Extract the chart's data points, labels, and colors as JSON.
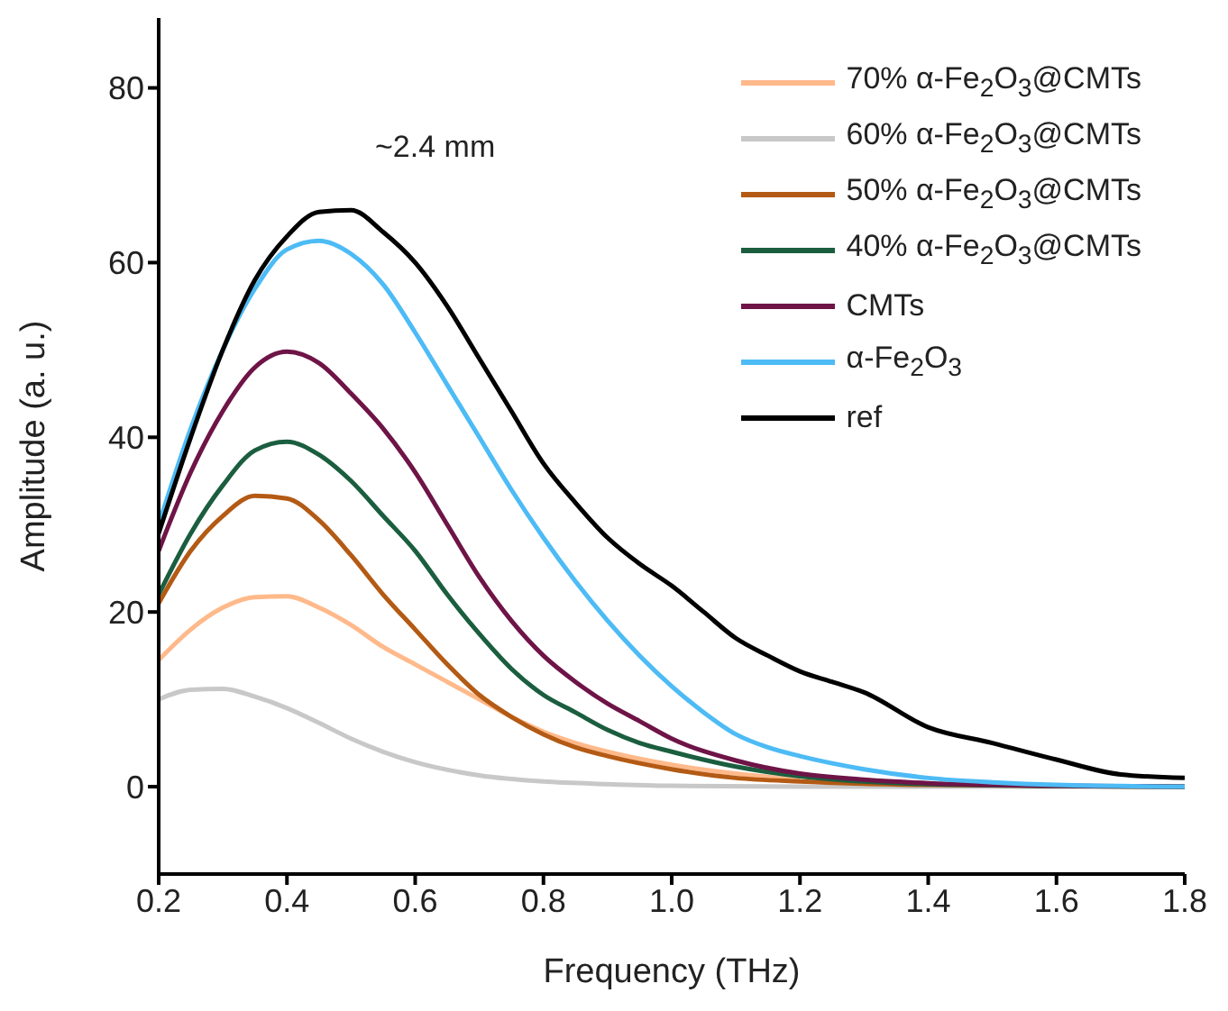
{
  "chart_data": {
    "type": "line",
    "xlabel": "Frequency (THz)",
    "ylabel": "Amplitude (a. u.)",
    "annotations": [
      "~2.4 mm"
    ],
    "xlim": [
      0.2,
      1.8
    ],
    "xticks": [
      0.2,
      0.4,
      0.6,
      0.8,
      {
        "value": 1,
        "label": "1.0"
      },
      1.2,
      1.4,
      1.6,
      1.8
    ],
    "ylim": [
      -10,
      88
    ],
    "yticks": [
      0,
      20,
      40,
      60,
      80
    ],
    "legend": "top right",
    "marker": "none",
    "line_style": "solid",
    "series": [
      {
        "name": "70% α-Fe$_{2}$O$_{3}$@CMTs",
        "color": "#ffb98a",
        "x": [
          0.2,
          0.25,
          0.3,
          0.35,
          0.4,
          0.45,
          0.5,
          0.55,
          0.6,
          0.65,
          0.7,
          0.75,
          0.8,
          0.85,
          0.9,
          1.0,
          1.1,
          1.2
        ],
        "values": [
          14.5,
          18,
          20.5,
          21.7,
          21.8,
          20.5,
          18.5,
          16,
          14,
          12,
          10,
          8,
          6.3,
          5,
          4,
          2.5,
          1.5,
          0.8
        ]
      },
      {
        "name": "60% α-Fe$_{2}$O$_{3}$@CMTs",
        "color": "#c8c8c8",
        "x": [
          0.2,
          0.25,
          0.3,
          0.35,
          0.4,
          0.45,
          0.5,
          0.55,
          0.6,
          0.7,
          0.8,
          0.9,
          1.0,
          1.2,
          1.8
        ],
        "values": [
          10,
          11.1,
          11.2,
          10.3,
          9,
          7.3,
          5.5,
          4,
          2.8,
          1.3,
          0.6,
          0.3,
          0.1,
          0,
          0
        ]
      },
      {
        "name": "50% α-Fe$_{2}$O$_{3}$@CMTs",
        "color": "#b35a14",
        "x": [
          0.2,
          0.25,
          0.3,
          0.35,
          0.4,
          0.45,
          0.5,
          0.55,
          0.6,
          0.65,
          0.7,
          0.75,
          0.8,
          0.85,
          0.9,
          1.0,
          1.1,
          1.2,
          1.4,
          1.8
        ],
        "values": [
          21,
          27,
          31,
          33.3,
          33,
          30.5,
          26.5,
          22,
          18,
          14,
          10.5,
          8,
          6,
          4.5,
          3.5,
          2,
          1,
          0.6,
          0.2,
          0
        ]
      },
      {
        "name": "40% α-Fe$_{2}$O$_{3}$@CMTs",
        "color": "#1b5e3f",
        "x": [
          0.2,
          0.25,
          0.3,
          0.35,
          0.4,
          0.45,
          0.5,
          0.55,
          0.6,
          0.65,
          0.7,
          0.75,
          0.8,
          0.85,
          0.9,
          0.95,
          1.0,
          1.1,
          1.2,
          1.3,
          1.4,
          1.8
        ],
        "values": [
          22,
          29,
          34.5,
          38.5,
          39.5,
          38,
          35,
          31,
          27,
          22,
          17.5,
          13.5,
          10.5,
          8.5,
          6.5,
          5,
          4,
          2.3,
          1.2,
          0.6,
          0.3,
          0
        ]
      },
      {
        "name": "CMTs",
        "color": "#6e1447",
        "x": [
          0.2,
          0.25,
          0.3,
          0.35,
          0.4,
          0.45,
          0.5,
          0.55,
          0.6,
          0.65,
          0.7,
          0.75,
          0.8,
          0.85,
          0.9,
          0.95,
          1.0,
          1.1,
          1.2,
          1.3,
          1.4,
          1.6,
          1.8
        ],
        "values": [
          27,
          36,
          43,
          48,
          49.8,
          48.5,
          45,
          41,
          36,
          30,
          24,
          19,
          15,
          12,
          9.5,
          7.5,
          5.5,
          3,
          1.5,
          0.8,
          0.4,
          0.1,
          0
        ]
      },
      {
        "name": "α-Fe$_{2}$O$_{3}$",
        "color": "#4dbbf5",
        "x": [
          0.2,
          0.25,
          0.3,
          0.35,
          0.4,
          0.45,
          0.5,
          0.55,
          0.6,
          0.65,
          0.7,
          0.75,
          0.8,
          0.85,
          0.9,
          0.95,
          1.0,
          1.05,
          1.1,
          1.15,
          1.2,
          1.3,
          1.4,
          1.5,
          1.6,
          1.8
        ],
        "values": [
          30,
          41,
          50,
          57,
          61.5,
          62.5,
          61,
          57.5,
          52,
          46,
          40,
          34,
          28.5,
          23.5,
          19,
          15,
          11.5,
          8.5,
          6,
          4.5,
          3.5,
          2,
          1,
          0.5,
          0.2,
          0
        ]
      },
      {
        "name": "ref",
        "color": "#000000",
        "x": [
          0.2,
          0.25,
          0.3,
          0.35,
          0.4,
          0.45,
          0.5,
          0.55,
          0.6,
          0.65,
          0.7,
          0.75,
          0.8,
          0.85,
          0.9,
          0.95,
          1.0,
          1.05,
          1.1,
          1.15,
          1.2,
          1.25,
          1.3,
          1.4,
          1.5,
          1.6,
          1.7,
          1.8
        ],
        "values": [
          29,
          40,
          50,
          58,
          63,
          65.8,
          66,
          63.5,
          60,
          55,
          49,
          43,
          37,
          32.5,
          28.5,
          25.5,
          23,
          20,
          17,
          15,
          13.2,
          12,
          10.8,
          6.8,
          5,
          3.1,
          1.4,
          1
        ]
      }
    ]
  }
}
